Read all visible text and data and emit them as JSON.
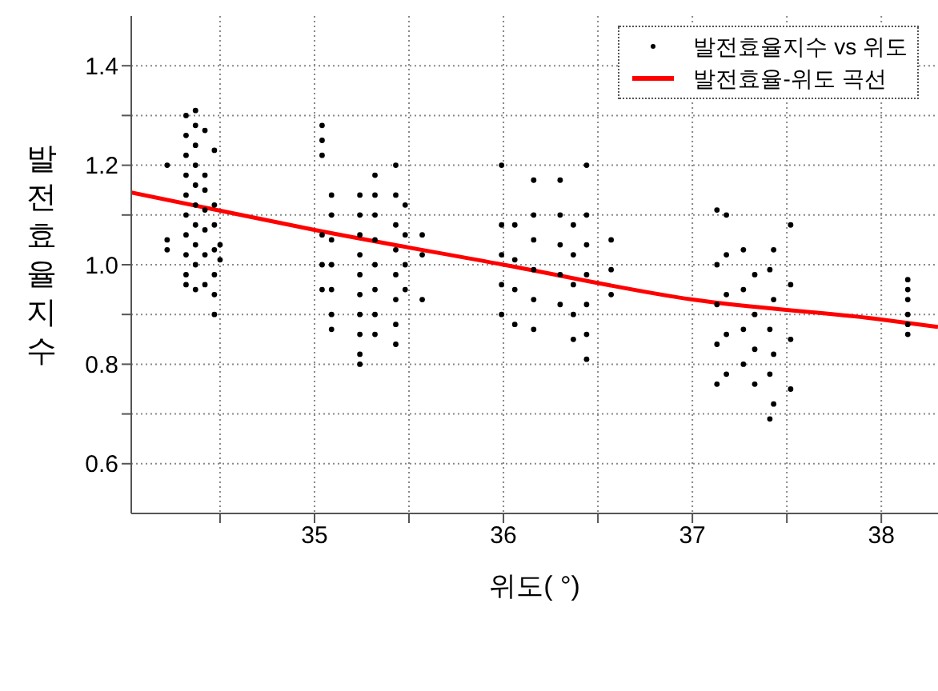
{
  "chart_data": {
    "type": "scatter",
    "xlabel": "위도( °)",
    "ylabel": "발전효율지수",
    "xlim": [
      34.03,
      38.3
    ],
    "ylim": [
      0.5,
      1.5
    ],
    "xticks": [
      {
        "value": 34.5,
        "label": null
      },
      35,
      {
        "value": 35.5,
        "label": null
      },
      36,
      {
        "value": 36.5,
        "label": null
      },
      37,
      {
        "value": 37.5,
        "label": null
      },
      38
    ],
    "yticks": [
      0.6,
      {
        "value": 0.7,
        "label": null
      },
      0.8,
      {
        "value": 0.9,
        "label": null
      },
      {
        "value": 1,
        "label": "1.0"
      },
      {
        "value": 1.1,
        "label": null
      },
      1.2,
      {
        "value": 1.3,
        "label": null
      },
      1.4
    ],
    "grid": true,
    "legend": "top right",
    "series": [
      {
        "name": "발전효율지수 vs 위도",
        "marker": "circle",
        "color": "#000000",
        "x": [
          34.22,
          34.22,
          34.22,
          34.32,
          34.32,
          34.32,
          34.32,
          34.32,
          34.32,
          34.32,
          34.32,
          34.32,
          34.32,
          34.37,
          34.37,
          34.37,
          34.37,
          34.37,
          34.37,
          34.37,
          34.37,
          34.37,
          34.37,
          34.42,
          34.42,
          34.42,
          34.42,
          34.42,
          34.42,
          34.42,
          34.47,
          34.47,
          34.47,
          34.47,
          34.47,
          34.47,
          34.47,
          34.5,
          34.5,
          35.04,
          35.04,
          35.04,
          35.04,
          35.04,
          35.04,
          35.09,
          35.09,
          35.09,
          35.09,
          35.09,
          35.09,
          35.09,
          35.24,
          35.24,
          35.24,
          35.24,
          35.24,
          35.24,
          35.24,
          35.24,
          35.24,
          35.24,
          35.32,
          35.32,
          35.32,
          35.32,
          35.32,
          35.32,
          35.32,
          35.32,
          35.43,
          35.43,
          35.43,
          35.43,
          35.43,
          35.43,
          35.43,
          35.43,
          35.48,
          35.48,
          35.48,
          35.48,
          35.57,
          35.57,
          35.57,
          35.99,
          35.99,
          35.99,
          35.99,
          35.99,
          36.06,
          36.06,
          36.06,
          36.06,
          36.16,
          36.16,
          36.16,
          36.16,
          36.16,
          36.16,
          36.3,
          36.3,
          36.3,
          36.3,
          36.3,
          36.37,
          36.37,
          36.37,
          36.37,
          36.37,
          36.44,
          36.44,
          36.44,
          36.44,
          36.44,
          36.44,
          36.44,
          36.57,
          36.57,
          36.57,
          37.13,
          37.13,
          37.13,
          37.13,
          37.13,
          37.18,
          37.18,
          37.18,
          37.18,
          37.18,
          37.27,
          37.27,
          37.27,
          37.27,
          37.33,
          37.33,
          37.33,
          37.33,
          37.41,
          37.41,
          37.41,
          37.41,
          37.43,
          37.43,
          37.43,
          37.43,
          37.52,
          37.52,
          37.52,
          37.52,
          38.14,
          38.14,
          38.14,
          38.14,
          38.14,
          38.14
        ],
        "values": [
          1.03,
          1.05,
          1.2,
          0.96,
          0.98,
          1.02,
          1.06,
          1.1,
          1.14,
          1.18,
          1.22,
          1.26,
          1.3,
          0.95,
          1.0,
          1.04,
          1.08,
          1.12,
          1.16,
          1.2,
          1.24,
          1.28,
          1.31,
          0.96,
          1.02,
          1.07,
          1.11,
          1.15,
          1.18,
          1.27,
          0.9,
          0.94,
          0.98,
          1.03,
          1.08,
          1.12,
          1.23,
          1.01,
          1.04,
          0.95,
          1.0,
          1.06,
          1.22,
          1.25,
          1.28,
          0.87,
          0.9,
          0.95,
          1.0,
          1.05,
          1.1,
          1.14,
          0.8,
          0.82,
          0.86,
          0.9,
          0.94,
          0.98,
          1.02,
          1.06,
          1.1,
          1.14,
          0.86,
          0.9,
          0.95,
          1.0,
          1.05,
          1.1,
          1.14,
          1.18,
          0.84,
          0.88,
          0.93,
          0.98,
          1.03,
          1.08,
          1.14,
          1.2,
          0.95,
          1.0,
          1.06,
          1.12,
          0.93,
          1.02,
          1.06,
          0.9,
          0.96,
          1.02,
          1.08,
          1.2,
          0.88,
          0.95,
          1.01,
          1.08,
          0.87,
          0.93,
          0.99,
          1.05,
          1.1,
          1.17,
          0.92,
          0.98,
          1.04,
          1.1,
          1.17,
          0.85,
          0.9,
          0.96,
          1.02,
          1.08,
          0.81,
          0.86,
          0.92,
          0.98,
          1.04,
          1.1,
          1.2,
          0.94,
          0.99,
          1.05,
          0.76,
          0.84,
          0.92,
          1.0,
          1.11,
          0.78,
          0.86,
          0.94,
          1.02,
          1.1,
          0.8,
          0.87,
          0.95,
          1.03,
          0.76,
          0.83,
          0.9,
          0.98,
          0.69,
          0.78,
          0.87,
          0.99,
          0.72,
          0.82,
          0.93,
          1.03,
          0.75,
          0.85,
          0.96,
          1.08,
          0.86,
          0.88,
          0.9,
          0.93,
          0.95,
          0.97
        ]
      },
      {
        "name": "발전효율-위도 곡선",
        "type": "line",
        "marker": "none",
        "color": "#ff0000",
        "x": [
          34.03,
          35,
          36,
          37,
          38,
          38.3
        ],
        "values": [
          1.145,
          1.07,
          1.0,
          0.93,
          0.89,
          0.875
        ]
      }
    ]
  }
}
